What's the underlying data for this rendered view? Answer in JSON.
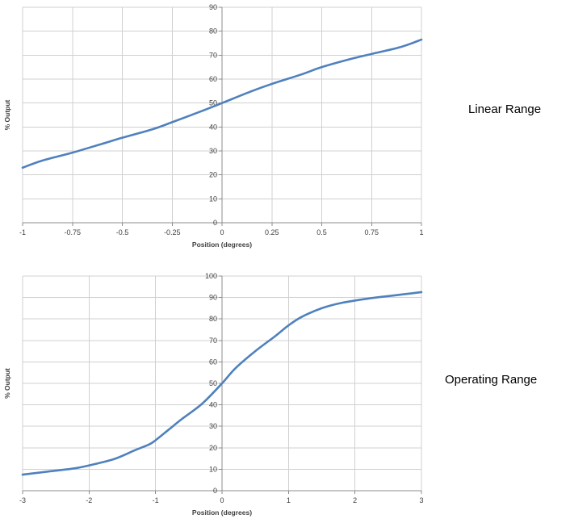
{
  "chart_data": [
    {
      "type": "line",
      "title": "",
      "side_label": "Linear Range",
      "xlabel": "Position (degrees)",
      "ylabel": "% Output",
      "xlim": [
        -1,
        1
      ],
      "ylim": [
        0,
        90
      ],
      "x_ticks": [
        -1,
        -0.75,
        -0.5,
        -0.25,
        0,
        0.25,
        0.5,
        0.75,
        1
      ],
      "y_ticks": [
        0,
        10,
        20,
        30,
        40,
        50,
        60,
        70,
        80,
        90
      ],
      "grid": true,
      "legend": "none",
      "color": "#4f81bd",
      "series": [
        {
          "x": [
            -1,
            -0.9,
            -0.75,
            -0.6,
            -0.5,
            -0.35,
            -0.25,
            -0.1,
            0,
            0.15,
            0.25,
            0.4,
            0.5,
            0.65,
            0.75,
            0.9,
            1
          ],
          "y": [
            23,
            26,
            29.3,
            33,
            35.5,
            39,
            42,
            46.7,
            50,
            55,
            58,
            62,
            65,
            68.5,
            70.5,
            73.5,
            76.5
          ]
        }
      ]
    },
    {
      "type": "line",
      "title": "",
      "side_label": "Operating Range",
      "xlabel": "Position (degrees)",
      "ylabel": "% Output",
      "xlim": [
        -3,
        3
      ],
      "ylim": [
        0,
        100
      ],
      "x_ticks": [
        -3,
        -2,
        -1,
        0,
        1,
        2,
        3
      ],
      "y_ticks": [
        0,
        10,
        20,
        30,
        40,
        50,
        60,
        70,
        80,
        90,
        100
      ],
      "grid": true,
      "legend": "none",
      "color": "#4f81bd",
      "series": [
        {
          "x": [
            -3,
            -2.6,
            -2.2,
            -1.9,
            -1.6,
            -1.3,
            -1.1,
            -1.0,
            -0.8,
            -0.6,
            -0.3,
            0,
            0.2,
            0.5,
            0.8,
            1.0,
            1.2,
            1.5,
            1.8,
            2.2,
            2.6,
            3
          ],
          "y": [
            7.5,
            9,
            10.5,
            12.5,
            15,
            19,
            21.5,
            23.5,
            28.5,
            33.5,
            40.5,
            50,
            57,
            65,
            72,
            77,
            81,
            85,
            87.5,
            89.5,
            91,
            92.5
          ]
        }
      ]
    }
  ]
}
